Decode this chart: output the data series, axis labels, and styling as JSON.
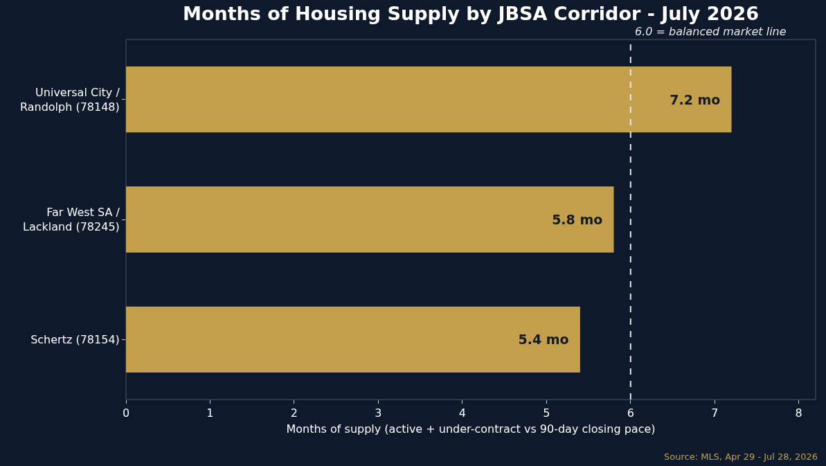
{
  "chart_data": {
    "type": "bar",
    "orientation": "horizontal",
    "title": "Months of Housing Supply by JBSA Corridor - July 2026",
    "xlabel": "Months of supply (active + under-contract vs 90-day closing pace)",
    "categories": [
      "Universal City /\nRandolph (78148)",
      "Far West SA /\nLackland (78245)",
      "Schertz (78154)"
    ],
    "values": [
      7.2,
      5.8,
      5.4
    ],
    "value_labels": [
      "7.2 mo",
      "5.8 mo",
      "5.4 mo"
    ],
    "color": "#c4a04c",
    "xlim": [
      0,
      8.2
    ],
    "xticks": [
      0,
      1,
      2,
      3,
      4,
      5,
      6,
      7,
      8
    ],
    "grid": false,
    "ref_lines": [
      {
        "axis": "x",
        "value": 6,
        "label": "6.0 = balanced market line",
        "color": "#e8e8e8",
        "line_style": "dashed"
      }
    ],
    "annotations": [
      "Source: MLS, Apr 29 - Jul 28, 2026"
    ]
  }
}
